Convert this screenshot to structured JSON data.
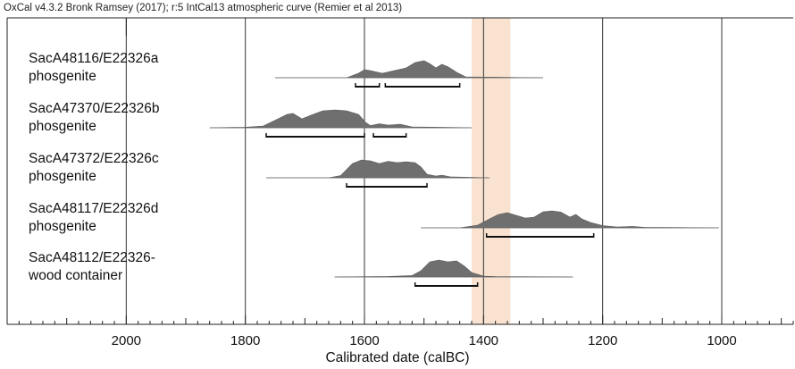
{
  "header": "OxCal v4.3.2 Bronk Ramsey (2017); r:5 IntCal13 atmospheric curve (Remier et al 2013)",
  "chart_data": {
    "type": "ridgeline",
    "title": "",
    "xlabel": "Calibrated date (calBC)",
    "ylabel": "",
    "x_reversed": true,
    "xlim": [
      2200,
      880
    ],
    "xticks": [
      2000,
      1800,
      1600,
      1400,
      1200,
      1000
    ],
    "grid_x": true,
    "band_color": "#f9e3d0",
    "band_range": [
      1420,
      1355
    ],
    "curve_color": "#6f6f6f",
    "samples": [
      {
        "label_line1": "SacA48116/E22326a",
        "label_line2": "phosgenite",
        "curve_range": [
          1750,
          1300
        ],
        "density": [
          [
            1750,
            0
          ],
          [
            1630,
            0
          ],
          [
            1610,
            0.25
          ],
          [
            1600,
            0.45
          ],
          [
            1590,
            0.4
          ],
          [
            1570,
            0.25
          ],
          [
            1550,
            0.4
          ],
          [
            1530,
            0.55
          ],
          [
            1515,
            0.85
          ],
          [
            1500,
            0.95
          ],
          [
            1490,
            0.78
          ],
          [
            1480,
            0.55
          ],
          [
            1470,
            0.75
          ],
          [
            1460,
            0.62
          ],
          [
            1445,
            0.3
          ],
          [
            1430,
            0.05
          ],
          [
            1300,
            0
          ]
        ],
        "ranges": [
          [
            1615,
            1575
          ],
          [
            1565,
            1440
          ]
        ]
      },
      {
        "label_line1": "SacA47370/E22326b",
        "label_line2": "phosgenite",
        "curve_range": [
          1860,
          1420
        ],
        "density": [
          [
            1860,
            0
          ],
          [
            1800,
            0.03
          ],
          [
            1770,
            0.1
          ],
          [
            1745,
            0.5
          ],
          [
            1730,
            0.75
          ],
          [
            1720,
            0.8
          ],
          [
            1705,
            0.5
          ],
          [
            1690,
            0.7
          ],
          [
            1670,
            0.95
          ],
          [
            1650,
            1.0
          ],
          [
            1630,
            0.95
          ],
          [
            1610,
            0.75
          ],
          [
            1598,
            0.3
          ],
          [
            1590,
            0.12
          ],
          [
            1575,
            0.22
          ],
          [
            1560,
            0.15
          ],
          [
            1540,
            0.2
          ],
          [
            1520,
            0.05
          ],
          [
            1420,
            0
          ]
        ],
        "ranges": [
          [
            1765,
            1600
          ],
          [
            1585,
            1530
          ]
        ]
      },
      {
        "label_line1": "SacA47372/E22326c",
        "label_line2": "phosgenite",
        "curve_range": [
          1765,
          1390
        ],
        "density": [
          [
            1765,
            0
          ],
          [
            1660,
            0
          ],
          [
            1640,
            0.12
          ],
          [
            1620,
            0.8
          ],
          [
            1605,
            1.0
          ],
          [
            1590,
            0.95
          ],
          [
            1575,
            0.8
          ],
          [
            1560,
            0.92
          ],
          [
            1545,
            0.85
          ],
          [
            1530,
            0.9
          ],
          [
            1515,
            0.85
          ],
          [
            1505,
            0.6
          ],
          [
            1495,
            0.2
          ],
          [
            1480,
            0.1
          ],
          [
            1470,
            0.15
          ],
          [
            1455,
            0.05
          ],
          [
            1390,
            0
          ]
        ],
        "ranges": [
          [
            1630,
            1495
          ]
        ]
      },
      {
        "label_line1": "SacA48117/E22326d",
        "label_line2": "phosgenite",
        "curve_range": [
          1505,
          1005
        ],
        "density": [
          [
            1505,
            0
          ],
          [
            1440,
            0
          ],
          [
            1410,
            0.15
          ],
          [
            1390,
            0.5
          ],
          [
            1375,
            0.75
          ],
          [
            1360,
            0.85
          ],
          [
            1345,
            0.7
          ],
          [
            1330,
            0.55
          ],
          [
            1315,
            0.6
          ],
          [
            1300,
            0.9
          ],
          [
            1285,
            0.95
          ],
          [
            1270,
            0.88
          ],
          [
            1255,
            0.6
          ],
          [
            1245,
            0.75
          ],
          [
            1235,
            0.5
          ],
          [
            1220,
            0.3
          ],
          [
            1200,
            0.12
          ],
          [
            1175,
            0.05
          ],
          [
            1150,
            0.08
          ],
          [
            1130,
            0.03
          ],
          [
            1005,
            0
          ]
        ],
        "ranges": [
          [
            1395,
            1215
          ]
        ]
      },
      {
        "label_line1": "SacA48112/E22326-",
        "label_line2": "wood container",
        "curve_range": [
          1650,
          1250
        ],
        "density": [
          [
            1650,
            0
          ],
          [
            1560,
            0.03
          ],
          [
            1520,
            0.08
          ],
          [
            1505,
            0.35
          ],
          [
            1490,
            0.85
          ],
          [
            1475,
            0.95
          ],
          [
            1460,
            0.85
          ],
          [
            1445,
            0.9
          ],
          [
            1432,
            0.6
          ],
          [
            1420,
            0.25
          ],
          [
            1400,
            0.05
          ],
          [
            1380,
            0.02
          ],
          [
            1250,
            0
          ]
        ],
        "ranges": [
          [
            1515,
            1410
          ]
        ]
      }
    ]
  }
}
